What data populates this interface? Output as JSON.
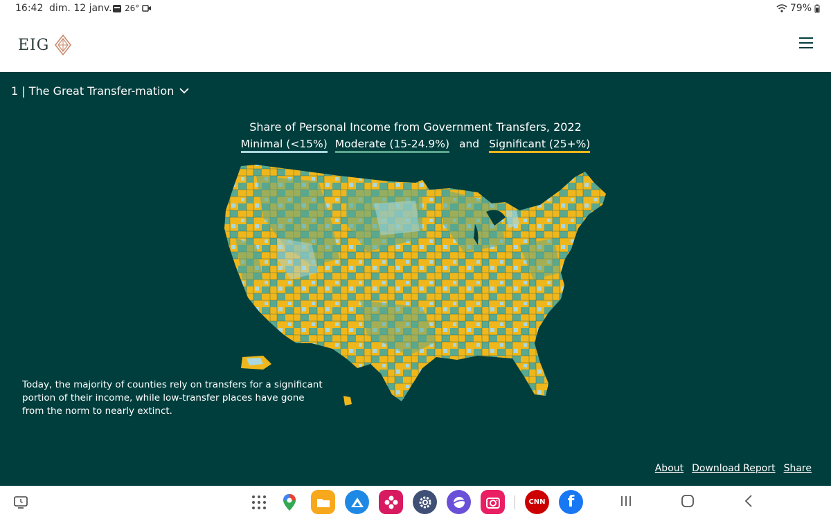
{
  "status_bar": {
    "time": "16:42",
    "date": "dim. 12 janv.",
    "temperature": "26°",
    "battery": "79%"
  },
  "header": {
    "logo_text": "EIG",
    "logo_icon": "diamond-logo-icon",
    "menu_icon": "hamburger-icon"
  },
  "main": {
    "section_label": "1 | The Great Transfer-mation",
    "chart_title": "Share of Personal Income from Government Transfers, 2022",
    "legend": {
      "minimal": "Minimal (<15%)",
      "moderate": "Moderate (15-24.9%)",
      "connector": "and",
      "significant": "Significant (25+%)"
    },
    "caption": "Today, the majority of counties rely on transfers for a significant portion of their income, while low-transfer places have gone from the norm to nearly extinct.",
    "footer": {
      "about": "About",
      "download": "Download Report",
      "share": "Share"
    }
  },
  "colors": {
    "background": "#003e3d",
    "minimal": "#a9d8e0",
    "moderate": "#5aa88e",
    "significant": "#efb71c"
  },
  "nav_bar": {
    "dock_apps": [
      "apps-grid-icon",
      "maps-icon",
      "files-icon",
      "drive-icon",
      "gallery-icon",
      "settings-icon",
      "internet-icon",
      "camera-icon",
      "cnn-icon",
      "facebook-icon"
    ],
    "cnn_label": "CNN",
    "facebook_label": "f"
  }
}
